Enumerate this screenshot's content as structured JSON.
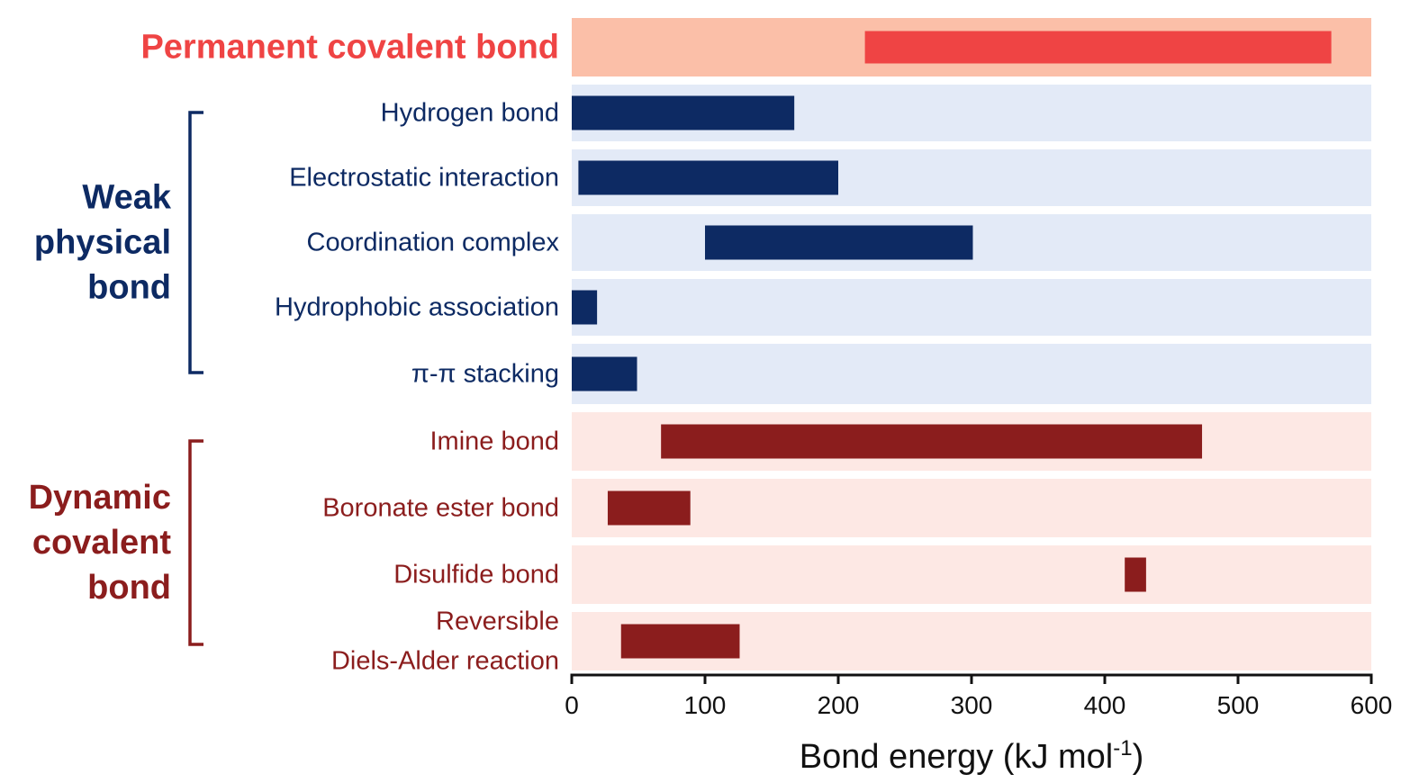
{
  "chart_data": {
    "type": "bar",
    "orientation": "horizontal-range",
    "xlabel": "Bond energy (kJ mol",
    "xlabel_superscript": "-1",
    "xlabel_suffix": ")",
    "xlim": [
      0,
      600
    ],
    "xticks": [
      0,
      100,
      200,
      300,
      400,
      500,
      600
    ],
    "groups": [
      {
        "label_lines": [],
        "color": "#ef4444",
        "band_color": "#fbbfa8"
      },
      {
        "label_lines": [
          "Weak",
          "physical",
          "bond"
        ],
        "color": "#0d2a63",
        "band_color": "#e3eaf7"
      },
      {
        "label_lines": [
          "Dynamic",
          "covalent",
          "bond"
        ],
        "color": "#8b1d1d",
        "band_color": "#fde8e4"
      }
    ],
    "categories": [
      {
        "label_lines": [
          "Permanent covalent bond"
        ],
        "group": 0,
        "range": [
          220,
          570
        ]
      },
      {
        "label_lines": [
          "Hydrogen bond"
        ],
        "group": 1,
        "range": [
          0,
          167
        ]
      },
      {
        "label_lines": [
          "Electrostatic interaction"
        ],
        "group": 1,
        "range": [
          5,
          200
        ]
      },
      {
        "label_lines": [
          "Coordination complex"
        ],
        "group": 1,
        "range": [
          100,
          301
        ]
      },
      {
        "label_lines": [
          "Hydrophobic association"
        ],
        "group": 1,
        "range": [
          0,
          19
        ]
      },
      {
        "label_lines": [
          "π-π stacking"
        ],
        "group": 1,
        "range": [
          0,
          49
        ]
      },
      {
        "label_lines": [
          "Imine bond"
        ],
        "group": 2,
        "range": [
          67,
          473
        ]
      },
      {
        "label_lines": [
          "Boronate ester bond"
        ],
        "group": 2,
        "range": [
          27,
          89
        ]
      },
      {
        "label_lines": [
          "Disulfide bond"
        ],
        "group": 2,
        "range": [
          415,
          431
        ]
      },
      {
        "label_lines": [
          "Reversible",
          "Diels-Alder reaction"
        ],
        "group": 2,
        "range": [
          37,
          126
        ]
      }
    ]
  }
}
